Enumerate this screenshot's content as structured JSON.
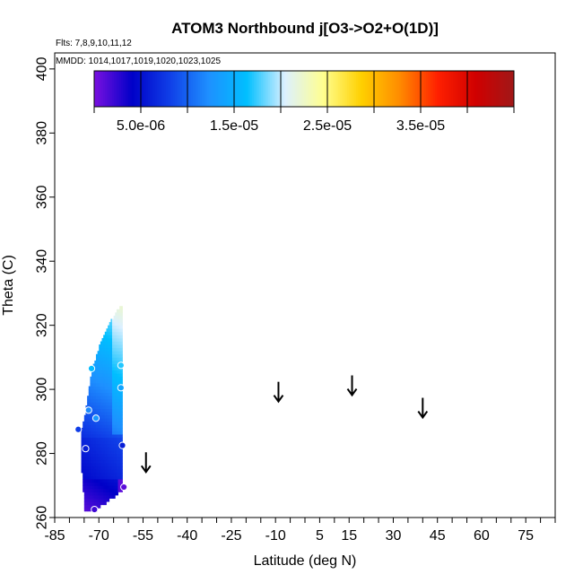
{
  "chart_data": {
    "type": "heatmap",
    "title": "ATOM3 Northbound j[O3->O2+O(1D)]",
    "flights_note": "Flts: 7,8,9,10,11,12",
    "dates_note": "MMDD: 1014,1017,1019,1020,1023,1025",
    "xlabel": "Latitude (deg N)",
    "ylabel": "Theta (C)",
    "xlim": [
      -85,
      85
    ],
    "ylim": [
      260,
      405
    ],
    "x_ticks": [
      -85,
      -70,
      -55,
      -40,
      -25,
      -10,
      5,
      15,
      30,
      45,
      60,
      75
    ],
    "x_tick_labels": [
      "-85",
      "-70",
      "-55",
      "-40",
      "-25",
      "-10",
      "5",
      "15",
      "30",
      "45",
      "60",
      "75"
    ],
    "x_minor_step": 5,
    "y_ticks": [
      260,
      280,
      300,
      320,
      340,
      360,
      380,
      400
    ],
    "y_tick_labels": [
      "260",
      "280",
      "300",
      "320",
      "340",
      "360",
      "380",
      "400"
    ],
    "colorbar": {
      "range": [
        0,
        4.5e-05
      ],
      "ticks": [
        5e-06,
        1.5e-05,
        2.5e-05,
        3.5e-05
      ],
      "tick_labels": [
        "5.0e-06",
        "1.5e-05",
        "2.5e-05",
        "3.5e-05"
      ],
      "divisions": [
        0,
        5e-06,
        1e-05,
        1.5e-05,
        2e-05,
        2.5e-05,
        3e-05,
        3.5e-05,
        4e-05,
        4.5e-05
      ],
      "colors": [
        "#7a10e0",
        "#0000c8",
        "#1040e8",
        "#1e90ff",
        "#00bfff",
        "#dcf0ff",
        "#ffff90",
        "#ffd000",
        "#ff8c00",
        "#ff2000",
        "#d00000",
        "#a01818"
      ]
    },
    "field": {
      "lat_min": -76,
      "lat_max": -62,
      "theta_min": 262,
      "theta_max": 326,
      "cell_lat": 0.5,
      "cell_theta": 1,
      "column_tops": [
        {
          "lat": -76,
          "theta_top": 288,
          "theta_bottom": 274
        },
        {
          "lat": -75,
          "theta_top": 292,
          "theta_bottom": 262
        },
        {
          "lat": -74,
          "theta_top": 298,
          "theta_bottom": 262
        },
        {
          "lat": -73,
          "theta_top": 304,
          "theta_bottom": 262
        },
        {
          "lat": -72,
          "theta_top": 308,
          "theta_bottom": 262
        },
        {
          "lat": -71,
          "theta_top": 311,
          "theta_bottom": 262
        },
        {
          "lat": -70,
          "theta_top": 314,
          "theta_bottom": 263
        },
        {
          "lat": -69,
          "theta_top": 316,
          "theta_bottom": 264
        },
        {
          "lat": -68,
          "theta_top": 318,
          "theta_bottom": 264
        },
        {
          "lat": -67,
          "theta_top": 320,
          "theta_bottom": 265
        },
        {
          "lat": -66,
          "theta_top": 322,
          "theta_bottom": 266
        },
        {
          "lat": -65,
          "theta_top": 323,
          "theta_bottom": 266
        },
        {
          "lat": -64,
          "theta_top": 325,
          "theta_bottom": 267
        },
        {
          "lat": -63,
          "theta_top": 326,
          "theta_bottom": 268
        },
        {
          "lat": -62,
          "theta_top": 326,
          "theta_bottom": 268
        }
      ]
    },
    "sample_points": [
      {
        "lat": -77,
        "theta": 287.5,
        "value": 8e-06
      },
      {
        "lat": -74.5,
        "theta": 281.5,
        "value": 6e-06
      },
      {
        "lat": -73.5,
        "theta": 293.5,
        "value": 1.2e-05
      },
      {
        "lat": -72.5,
        "theta": 306.5,
        "value": 1.6e-05
      },
      {
        "lat": -71,
        "theta": 291,
        "value": 1.3e-05
      },
      {
        "lat": -71.5,
        "theta": 262.5,
        "value": 2e-06
      },
      {
        "lat": -62.5,
        "theta": 307.5,
        "value": 1.7e-05
      },
      {
        "lat": -62.5,
        "theta": 300.5,
        "value": 1.4e-05
      },
      {
        "lat": -62,
        "theta": 282.5,
        "value": 6e-06
      },
      {
        "lat": -61.5,
        "theta": 269.5,
        "value": 1e-06
      }
    ],
    "arrows": [
      {
        "lat": -54,
        "theta": 277
      },
      {
        "lat": -9,
        "theta": 299
      },
      {
        "lat": 16,
        "theta": 301
      },
      {
        "lat": 40,
        "theta": 294
      }
    ]
  }
}
